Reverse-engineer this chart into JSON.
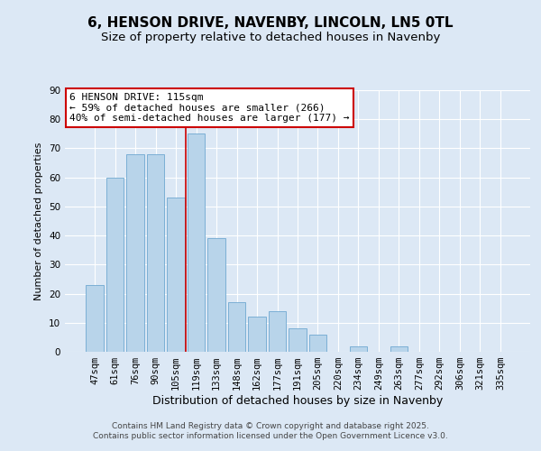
{
  "title": "6, HENSON DRIVE, NAVENBY, LINCOLN, LN5 0TL",
  "subtitle": "Size of property relative to detached houses in Navenby",
  "xlabel": "Distribution of detached houses by size in Navenby",
  "ylabel": "Number of detached properties",
  "bar_labels": [
    "47sqm",
    "61sqm",
    "76sqm",
    "90sqm",
    "105sqm",
    "119sqm",
    "133sqm",
    "148sqm",
    "162sqm",
    "177sqm",
    "191sqm",
    "205sqm",
    "220sqm",
    "234sqm",
    "249sqm",
    "263sqm",
    "277sqm",
    "292sqm",
    "306sqm",
    "321sqm",
    "335sqm"
  ],
  "bar_values": [
    23,
    60,
    68,
    68,
    53,
    75,
    39,
    17,
    12,
    14,
    8,
    6,
    0,
    2,
    0,
    2,
    0,
    0,
    0,
    0,
    0
  ],
  "bar_color": "#b8d4ea",
  "bar_edge_color": "#6fa8d0",
  "vline_x": 5,
  "vline_color": "#cc0000",
  "annotation_text": "6 HENSON DRIVE: 115sqm\n← 59% of detached houses are smaller (266)\n40% of semi-detached houses are larger (177) →",
  "annotation_box_color": "#ffffff",
  "annotation_box_edge": "#cc0000",
  "ylim": [
    0,
    90
  ],
  "yticks": [
    0,
    10,
    20,
    30,
    40,
    50,
    60,
    70,
    80,
    90
  ],
  "bg_color": "#dce8f5",
  "plot_bg_color": "#dce8f5",
  "footer_line1": "Contains HM Land Registry data © Crown copyright and database right 2025.",
  "footer_line2": "Contains public sector information licensed under the Open Government Licence v3.0.",
  "title_fontsize": 11,
  "subtitle_fontsize": 9.5,
  "xlabel_fontsize": 9,
  "ylabel_fontsize": 8,
  "tick_fontsize": 7.5,
  "annot_fontsize": 8,
  "footer_fontsize": 6.5
}
